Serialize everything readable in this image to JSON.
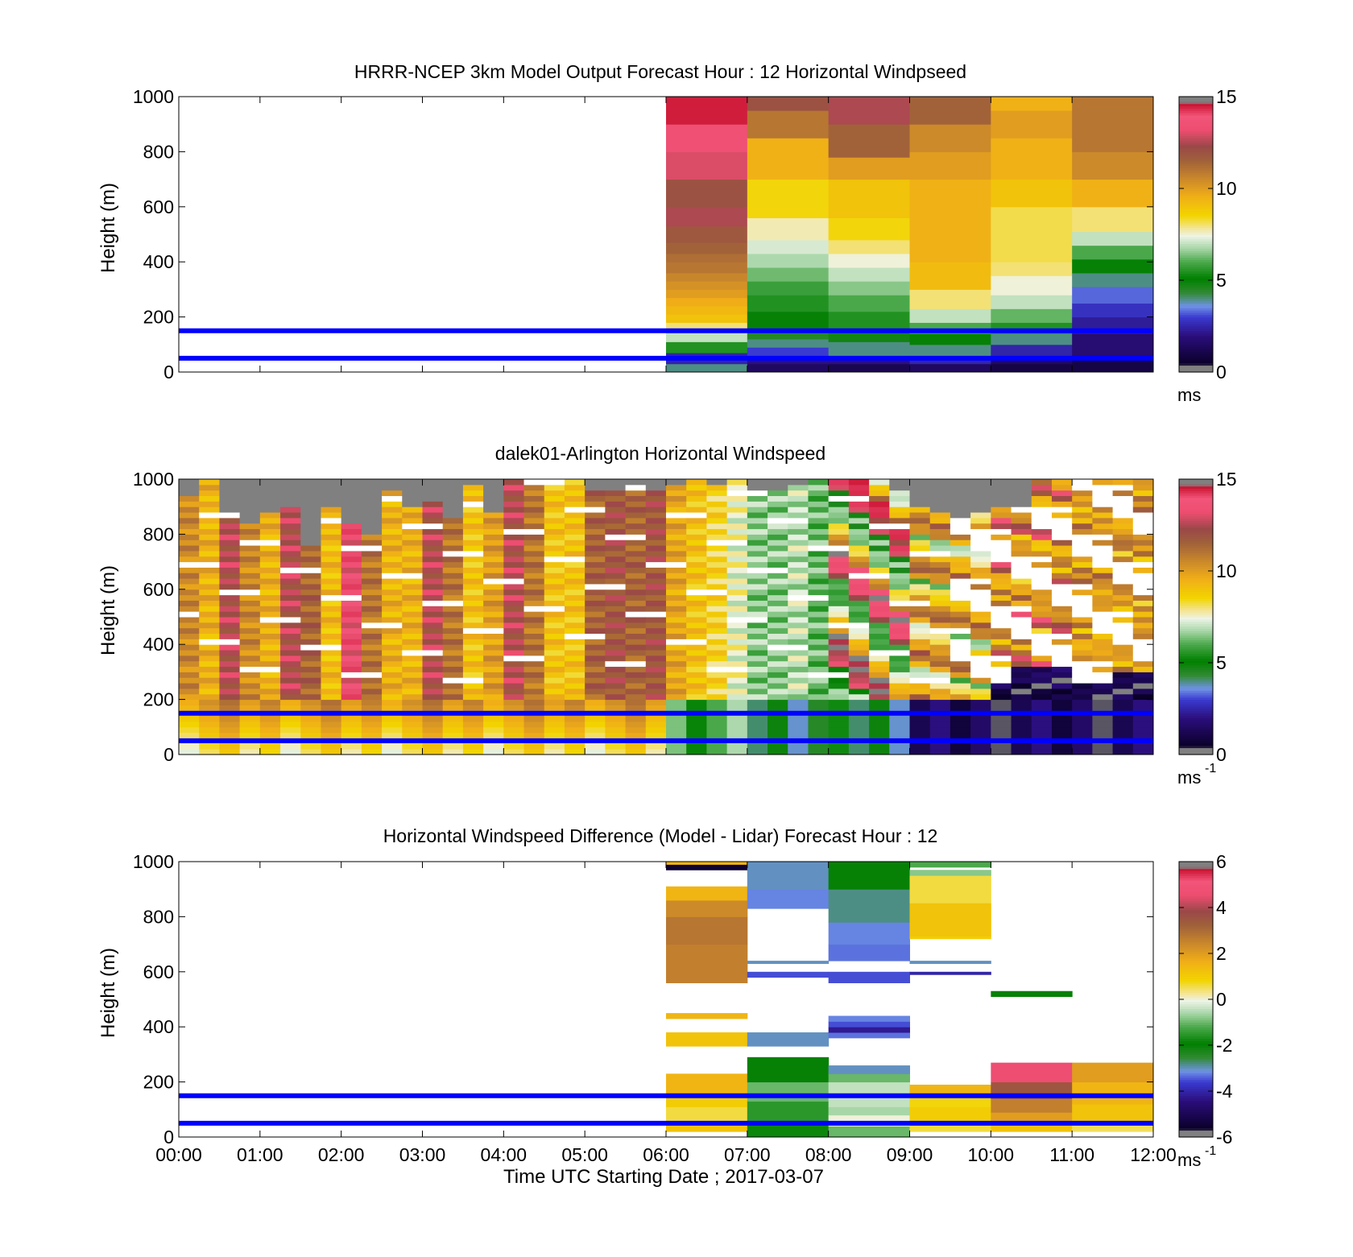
{
  "chart_data": [
    {
      "type": "heatmap",
      "title": "HRRR-NCEP 3km Model Output   Forecast Hour : 12 Horizontal Windpseed",
      "ylabel": "Height (m)",
      "xlabel": "",
      "xlim": [
        0,
        12
      ],
      "ylim": [
        0,
        1000
      ],
      "yticks": [
        "0",
        "200",
        "400",
        "600",
        "800",
        "1000"
      ],
      "xtick_labels_shown": false,
      "colorbar": {
        "ticks": [
          "0",
          "5",
          "10",
          "15"
        ],
        "range": [
          0,
          15
        ],
        "unit": "ms",
        "unit_sup": ""
      },
      "reference_lines_m": [
        50,
        150
      ],
      "reference_line_color": "#0000ff",
      "hours": [
        {
          "start_hour": 6,
          "rows": [
            [
              0,
              30,
              4
            ],
            [
              30,
              70,
              2.5
            ],
            [
              70,
              110,
              5.5
            ],
            [
              110,
              150,
              7
            ],
            [
              150,
              180,
              8
            ],
            [
              180,
              210,
              9
            ],
            [
              210,
              240,
              9.3
            ],
            [
              240,
              270,
              9.6
            ],
            [
              270,
              300,
              10
            ],
            [
              300,
              330,
              10.3
            ],
            [
              330,
              360,
              10.6
            ],
            [
              360,
              400,
              11
            ],
            [
              400,
              430,
              11.2
            ],
            [
              430,
              470,
              11.5
            ],
            [
              470,
              530,
              11.8
            ],
            [
              530,
              600,
              12.5
            ],
            [
              600,
              700,
              12
            ],
            [
              700,
              800,
              13
            ],
            [
              800,
              900,
              14
            ],
            [
              900,
              1000,
              14.5
            ]
          ]
        },
        {
          "start_hour": 7,
          "rows": [
            [
              0,
              30,
              1.5
            ],
            [
              30,
              60,
              2
            ],
            [
              60,
              90,
              3
            ],
            [
              90,
              120,
              4
            ],
            [
              120,
              150,
              4.5
            ],
            [
              150,
              220,
              5
            ],
            [
              220,
              280,
              5.5
            ],
            [
              280,
              330,
              5.8
            ],
            [
              330,
              380,
              6.3
            ],
            [
              380,
              430,
              6.8
            ],
            [
              430,
              480,
              7.2
            ],
            [
              480,
              560,
              7.7
            ],
            [
              560,
              700,
              8.5
            ],
            [
              700,
              850,
              9.5
            ],
            [
              850,
              950,
              11
            ],
            [
              950,
              1000,
              12
            ]
          ]
        },
        {
          "start_hour": 8,
          "rows": [
            [
              0,
              30,
              1.2
            ],
            [
              30,
              60,
              2
            ],
            [
              60,
              110,
              4
            ],
            [
              110,
              160,
              4.8
            ],
            [
              160,
              220,
              5.5
            ],
            [
              220,
              280,
              6
            ],
            [
              280,
              330,
              6.5
            ],
            [
              330,
              380,
              7
            ],
            [
              380,
              430,
              7.5
            ],
            [
              430,
              480,
              8
            ],
            [
              480,
              560,
              8.5
            ],
            [
              560,
              700,
              9
            ],
            [
              700,
              780,
              10
            ],
            [
              780,
              900,
              11.5
            ],
            [
              900,
              1000,
              12.5
            ]
          ]
        },
        {
          "start_hour": 9,
          "rows": [
            [
              0,
              30,
              1.5
            ],
            [
              30,
              60,
              2.5
            ],
            [
              60,
              100,
              4
            ],
            [
              100,
              140,
              5
            ],
            [
              140,
              180,
              6
            ],
            [
              180,
              230,
              7
            ],
            [
              230,
              300,
              8
            ],
            [
              300,
              400,
              9.2
            ],
            [
              400,
              500,
              9.5
            ],
            [
              500,
              600,
              9.5
            ],
            [
              600,
              700,
              9.5
            ],
            [
              700,
              800,
              10
            ],
            [
              800,
              900,
              10.5
            ],
            [
              900,
              1000,
              11.5
            ]
          ]
        },
        {
          "start_hour": 10,
          "rows": [
            [
              0,
              30,
              1
            ],
            [
              30,
              60,
              1.5
            ],
            [
              60,
              100,
              2.5
            ],
            [
              100,
              140,
              4
            ],
            [
              140,
              180,
              5.5
            ],
            [
              180,
              230,
              6.2
            ],
            [
              230,
              280,
              7
            ],
            [
              280,
              350,
              7.5
            ],
            [
              350,
              400,
              8
            ],
            [
              400,
              600,
              8.2
            ],
            [
              600,
              700,
              9
            ],
            [
              700,
              850,
              9.5
            ],
            [
              850,
              950,
              10
            ],
            [
              950,
              1000,
              9.5
            ]
          ]
        },
        {
          "start_hour": 11,
          "rows": [
            [
              0,
              60,
              1
            ],
            [
              60,
              140,
              1.8
            ],
            [
              140,
              200,
              2.3
            ],
            [
              200,
              250,
              2.8
            ],
            [
              250,
              310,
              3.3
            ],
            [
              310,
              360,
              4
            ],
            [
              360,
              410,
              5
            ],
            [
              410,
              460,
              6
            ],
            [
              460,
              510,
              7
            ],
            [
              510,
              600,
              8
            ],
            [
              600,
              700,
              9.5
            ],
            [
              700,
              800,
              10.5
            ],
            [
              800,
              1000,
              11
            ]
          ]
        }
      ]
    },
    {
      "type": "heatmap",
      "title": "dalek01-Arlington  Horizontal Windspeed",
      "ylabel": "Height (m)",
      "xlabel": "",
      "xlim": [
        0,
        12
      ],
      "ylim": [
        0,
        1000
      ],
      "yticks": [
        "0",
        "200",
        "400",
        "600",
        "800",
        "1000"
      ],
      "xtick_labels_shown": false,
      "colorbar": {
        "ticks": [
          "0",
          "5",
          "10",
          "15"
        ],
        "range": [
          0,
          15
        ],
        "unit": "ms",
        "unit_sup": "-1"
      },
      "reference_lines_m": [
        50,
        150
      ],
      "reference_line_color": "#0000ff",
      "column_width_h": 0.25,
      "row_height_m": 20,
      "gates": [
        {
          "h": 0,
          "p": [
            10.5,
            9.5,
            12.5,
            10.5,
            9.5,
            12.5,
            11.5,
            9.2,
            13.5,
            11,
            9.5,
            9.5,
            12.5,
            11,
            9,
            10,
            12.5,
            11,
            9,
            9,
            11.5,
            12,
            11.5,
            12,
            11,
            11.5,
            11,
            11,
            8.5,
            8,
            9.5,
            8
          ]
        },
        {
          "h": 6,
          "p": [
            9.8,
            9,
            8.5,
            7.5,
            6.5,
            6.5,
            7,
            6.2,
            10,
            11,
            12.5,
            13.5,
            11.5,
            12.5,
            12,
            13,
            12.5,
            13,
            12,
            14
          ]
        },
        {
          "h": 8,
          "p": [
            13,
            13.5,
            12.5,
            14,
            15,
            14.5,
            10.8,
            9.5,
            8.5,
            8,
            7,
            6.5,
            6,
            5,
            6.5,
            5.5
          ]
        },
        {
          "h": 9,
          "p": [
            10,
            11,
            11.5,
            10,
            9.5,
            8.5,
            7.5,
            6.5
          ]
        },
        {
          "h": 10,
          "p": [
            1,
            1.5,
            1.2,
            0.8,
            1,
            0.5,
            0.8,
            1.5,
            9,
            12.5,
            13,
            10.5,
            9.5,
            11,
            10,
            9.5
          ]
        },
        {
          "h": 11,
          "p": [
            1.2,
            0.8,
            1,
            0.6,
            9.5,
            10.5,
            9,
            11,
            10.5,
            11,
            9.5,
            10
          ]
        }
      ],
      "missing_above_hour_m": [
        940,
        1000,
        870,
        830,
        880,
        900,
        760,
        890,
        830,
        790,
        960,
        900,
        920,
        850,
        980,
        880,
        990,
        990,
        990,
        990,
        960,
        950,
        980,
        960,
        970,
        990,
        980,
        990,
        960,
        960,
        970,
        990,
        990,
        990,
        990,
        960,
        900,
        870,
        860,
        880,
        890,
        900,
        990,
        990,
        990,
        990,
        990,
        990
      ],
      "missing_color": "#808080"
    },
    {
      "type": "heatmap",
      "title": "Horizontal Windspeed Difference (Model - Lidar) Forecast Hour : 12",
      "ylabel": "Height (m)",
      "xlabel": "Time UTC  Starting Date ; 2017-03-07",
      "xlim": [
        0,
        12
      ],
      "ylim": [
        0,
        1000
      ],
      "yticks": [
        "0",
        "200",
        "400",
        "600",
        "800",
        "1000"
      ],
      "xticks": [
        "00:00",
        "01:00",
        "02:00",
        "03:00",
        "04:00",
        "05:00",
        "06:00",
        "07:00",
        "08:00",
        "09:00",
        "10:00",
        "11:00",
        "12:00"
      ],
      "colorbar": {
        "ticks": [
          "-6",
          "-4",
          "-2",
          "0",
          "2",
          "4",
          "6"
        ],
        "range": [
          -6,
          6
        ],
        "unit": "ms",
        "unit_sup": "-1"
      },
      "reference_lines_m": [
        50,
        150
      ],
      "reference_line_color": "#0000ff",
      "hours": [
        {
          "start_hour": 6,
          "rows": [
            [
              20,
              60,
              1.2
            ],
            [
              60,
              110,
              0.6
            ],
            [
              110,
              150,
              1
            ],
            [
              150,
              230,
              1.5
            ],
            [
              330,
              380,
              1.2
            ],
            [
              430,
              450,
              1.5
            ],
            [
              560,
              700,
              2.6
            ],
            [
              700,
              800,
              2.8
            ],
            [
              800,
              860,
              2.4
            ],
            [
              860,
              910,
              1.5
            ],
            [
              970,
              990,
              -5.5
            ],
            [
              990,
              1000,
              1.5
            ]
          ]
        },
        {
          "start_hour": 7,
          "rows": [
            [
              0,
              60,
              -1.8
            ],
            [
              60,
              130,
              -1.5
            ],
            [
              130,
              200,
              -1
            ],
            [
              200,
              290,
              -2
            ],
            [
              330,
              380,
              -3
            ],
            [
              580,
              600,
              -3.5
            ],
            [
              630,
              640,
              -3
            ],
            [
              830,
              900,
              -3.2
            ],
            [
              900,
              1000,
              -3
            ]
          ]
        },
        {
          "start_hour": 8,
          "rows": [
            [
              0,
              40,
              -1
            ],
            [
              40,
              80,
              0
            ],
            [
              80,
              110,
              -0.6
            ],
            [
              110,
              200,
              -0.4
            ],
            [
              200,
              230,
              -1
            ],
            [
              230,
              260,
              -3
            ],
            [
              360,
              380,
              -3.3
            ],
            [
              380,
              400,
              -4.2
            ],
            [
              400,
              420,
              -3.5
            ],
            [
              420,
              440,
              -3.2
            ],
            [
              560,
              600,
              -3.5
            ],
            [
              640,
              700,
              -3.3
            ],
            [
              700,
              780,
              -3.2
            ],
            [
              780,
              900,
              -2.8
            ],
            [
              900,
              1000,
              -2
            ]
          ]
        },
        {
          "start_hour": 9,
          "rows": [
            [
              20,
              60,
              0.6
            ],
            [
              60,
              110,
              1
            ],
            [
              110,
              150,
              0.8
            ],
            [
              150,
              190,
              1.5
            ],
            [
              590,
              600,
              -4
            ],
            [
              630,
              640,
              -3
            ],
            [
              720,
              730,
              1
            ],
            [
              730,
              850,
              1.2
            ],
            [
              850,
              950,
              0.6
            ],
            [
              950,
              970,
              -0.8
            ],
            [
              980,
              1000,
              -1.2
            ]
          ]
        },
        {
          "start_hour": 10,
          "rows": [
            [
              20,
              60,
              1.2
            ],
            [
              60,
              90,
              2
            ],
            [
              90,
              140,
              2.6
            ],
            [
              140,
              200,
              3.5
            ],
            [
              200,
              270,
              4.6
            ],
            [
              510,
              530,
              -2
            ]
          ]
        },
        {
          "start_hour": 11,
          "rows": [
            [
              20,
              60,
              0.5
            ],
            [
              60,
              120,
              1.2
            ],
            [
              120,
              200,
              1.5
            ],
            [
              200,
              270,
              2
            ]
          ]
        }
      ]
    }
  ]
}
